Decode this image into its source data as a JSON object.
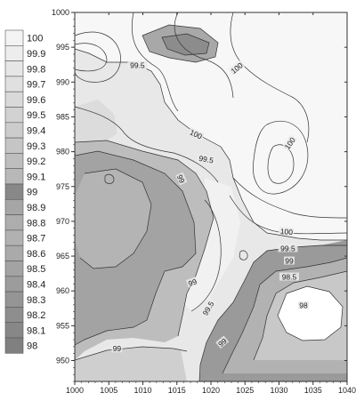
{
  "chart_data": {
    "type": "contour",
    "title": "",
    "xlabel": "",
    "ylabel": "",
    "xlim": [
      1000,
      1040
    ],
    "ylim": [
      947,
      1000
    ],
    "x_ticks": [
      "1000",
      "1005",
      "1010",
      "1015",
      "1020",
      "1025",
      "1030",
      "1035",
      "1040"
    ],
    "y_ticks": [
      "950",
      "955",
      "960",
      "965",
      "970",
      "975",
      "980",
      "985",
      "990",
      "995",
      "1000"
    ],
    "legend": {
      "position": "left",
      "levels": [
        "100",
        "99.9",
        "99.8",
        "99.7",
        "99.6",
        "99.5",
        "99.4",
        "99.3",
        "99.2",
        "99.1",
        "99",
        "98.9",
        "98.8",
        "98.7",
        "98.6",
        "98.5",
        "98.4",
        "98.3",
        "98.2",
        "98.1",
        "98"
      ],
      "colors": [
        "#f3f3f3",
        "#ededed",
        "#e6e6e6",
        "#e0e0e0",
        "#d9d9d9",
        "#d2d2d2",
        "#cccccc",
        "#c5c5c5",
        "#bebebe",
        "#b8b8b8",
        "#888888",
        "#a6a6a6",
        "#adadad",
        "#b1b1b1",
        "#aaaaaa",
        "#a3a3a3",
        "#9c9c9c",
        "#959595",
        "#8e8e8e",
        "#878787",
        "#808080"
      ]
    },
    "contour_labels": [
      {
        "text": "99.5",
        "x": 1009.2,
        "y": 992.4,
        "angle": 0
      },
      {
        "text": "100",
        "x": 1023.8,
        "y": 992.0,
        "angle": -38
      },
      {
        "text": "100",
        "x": 1017.8,
        "y": 982.5,
        "angle": 25
      },
      {
        "text": "100",
        "x": 1031.6,
        "y": 981.2,
        "angle": -55
      },
      {
        "text": "99.5",
        "x": 1019.3,
        "y": 978.9,
        "angle": 10
      },
      {
        "text": "99",
        "x": 1015.6,
        "y": 976.1,
        "angle": 65
      },
      {
        "text": "100",
        "x": 1031.1,
        "y": 968.5,
        "angle": 5
      },
      {
        "text": "99.5",
        "x": 1031.3,
        "y": 966.1,
        "angle": 0
      },
      {
        "text": "99",
        "x": 1031.5,
        "y": 964.3,
        "angle": 0
      },
      {
        "text": "98.5",
        "x": 1031.5,
        "y": 962.0,
        "angle": 0
      },
      {
        "text": "99",
        "x": 1017.3,
        "y": 961.2,
        "angle": -20
      },
      {
        "text": "99.5",
        "x": 1019.6,
        "y": 957.5,
        "angle": -60
      },
      {
        "text": "98",
        "x": 1033.6,
        "y": 957.9,
        "angle": 0
      },
      {
        "text": "99",
        "x": 1006.2,
        "y": 951.7,
        "angle": 0
      },
      {
        "text": "99",
        "x": 1021.7,
        "y": 952.6,
        "angle": -40
      }
    ]
  }
}
